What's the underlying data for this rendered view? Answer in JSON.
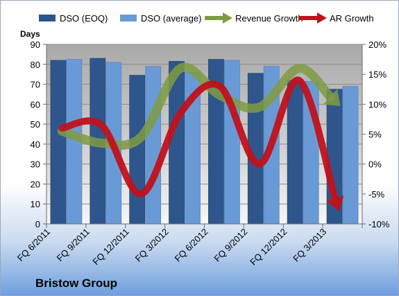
{
  "colors": {
    "eoq_bar": "#2f568c",
    "avg_bar": "#6a9ad6",
    "revenue_arrow": "#7f9b42",
    "ar_arrow": "#c0121c"
  },
  "chart_data": {
    "type": "bar",
    "title": "",
    "categories": [
      "FQ 6/2011",
      "FQ 9/2011",
      "FQ 12/2011",
      "FQ 3/2012",
      "FQ 6/2012",
      "FQ 9/2012",
      "FQ 12/2012",
      "FQ 3/2013"
    ],
    "y_left": {
      "label": "Days",
      "min": 0,
      "max": 90,
      "step": 10
    },
    "y_right": {
      "label": "",
      "min": -10,
      "max": 20,
      "step": 5,
      "format": "percent"
    },
    "series": [
      {
        "name": "DSO (EOQ)",
        "kind": "bar",
        "axis": "left",
        "values": [
          82,
          83,
          74.5,
          81.5,
          82.5,
          75.5,
          72,
          67.5
        ]
      },
      {
        "name": "DSO (average)",
        "kind": "bar",
        "axis": "left",
        "values": [
          82.5,
          81,
          79,
          76,
          82,
          79,
          71.5,
          69
        ]
      },
      {
        "name": "Revenue Growth",
        "kind": "arrow-line",
        "axis": "right",
        "values": [
          5.5,
          3.5,
          4.5,
          16,
          11.5,
          9.5,
          16,
          10
        ]
      },
      {
        "name": "AR Growth",
        "kind": "arrow-line",
        "axis": "right",
        "values": [
          6,
          6.5,
          -5,
          8.5,
          13,
          0,
          14,
          -7.5
        ]
      }
    ],
    "grid": true,
    "legend_position": "top"
  },
  "footer": {
    "company": "Bristow Group"
  }
}
